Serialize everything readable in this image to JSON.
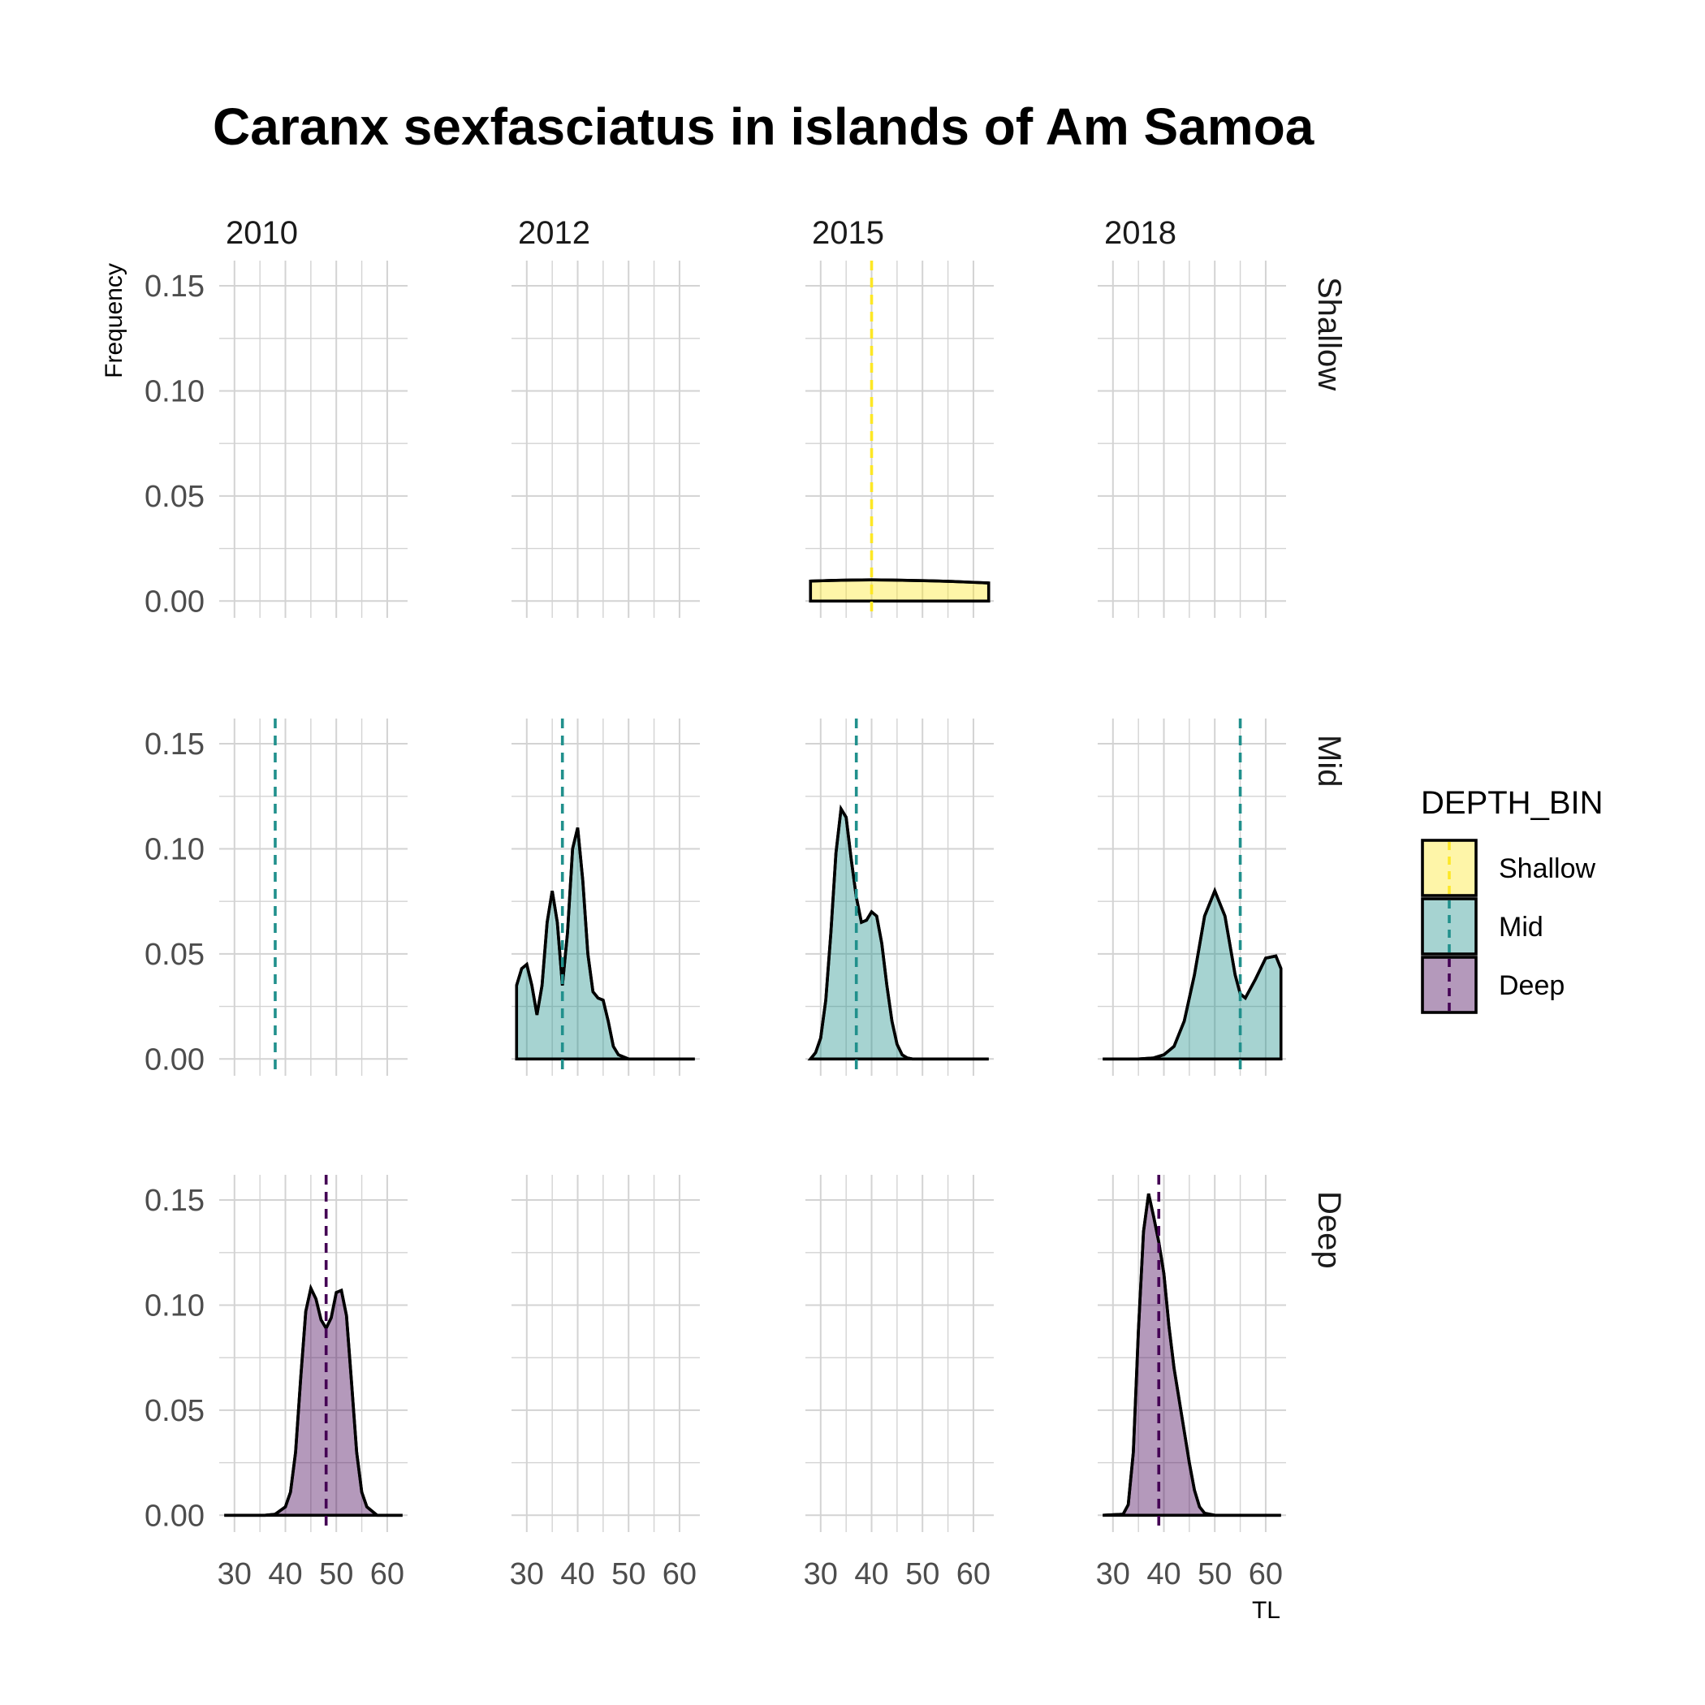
{
  "chart_data": {
    "type": "area",
    "title": "Caranx sexfasciatus in islands of Am Samoa",
    "xlabel": "TL",
    "ylabel": "Frequency",
    "xlim": [
      27,
      64
    ],
    "ylim": [
      -0.008,
      0.162
    ],
    "x_ticks": [
      30,
      40,
      50,
      60
    ],
    "x_tick_labels": [
      "30",
      "40",
      "50",
      "60"
    ],
    "y_ticks": [
      0,
      0.05,
      0.1,
      0.15
    ],
    "y_tick_labels": [
      "0.00",
      "0.05",
      "0.10",
      "0.15"
    ],
    "grid": true,
    "columns": [
      "2010",
      "2012",
      "2015",
      "2018"
    ],
    "rows": [
      "Shallow",
      "Mid",
      "Deep"
    ],
    "legend": {
      "title": "DEPTH_BIN",
      "position": "right",
      "items": [
        {
          "label": "Shallow",
          "color": "#FDE725"
        },
        {
          "label": "Mid",
          "color": "#21908C"
        },
        {
          "label": "Deep",
          "color": "#440154"
        }
      ]
    },
    "series": [
      {
        "year": "2015",
        "depth": "Shallow",
        "mean": 40,
        "x": [
          28,
          32,
          36,
          40,
          44,
          48,
          52,
          56,
          60,
          63
        ],
        "y": [
          0.0095,
          0.0098,
          0.01,
          0.0101,
          0.01,
          0.0098,
          0.0096,
          0.0093,
          0.0089,
          0.0086
        ]
      },
      {
        "year": "2010",
        "depth": "Mid",
        "mean": 38,
        "x": [],
        "y": []
      },
      {
        "year": "2012",
        "depth": "Mid",
        "mean": 37,
        "x": [
          28,
          29,
          30,
          31,
          32,
          33,
          34,
          35,
          36,
          37,
          38,
          39,
          40,
          41,
          42,
          43,
          44,
          45,
          46,
          47,
          48,
          50,
          55,
          60,
          63
        ],
        "y": [
          0.035,
          0.043,
          0.045,
          0.035,
          0.021,
          0.035,
          0.065,
          0.08,
          0.065,
          0.035,
          0.06,
          0.1,
          0.11,
          0.085,
          0.05,
          0.032,
          0.029,
          0.028,
          0.018,
          0.006,
          0.002,
          0,
          0,
          0,
          0
        ]
      },
      {
        "year": "2015",
        "depth": "Mid",
        "mean": 37,
        "x": [
          28,
          29,
          30,
          31,
          32,
          33,
          34,
          35,
          36,
          37,
          38,
          39,
          40,
          41,
          42,
          43,
          44,
          45,
          46,
          47,
          48,
          50,
          55,
          60,
          63
        ],
        "y": [
          0.0,
          0.003,
          0.01,
          0.028,
          0.06,
          0.098,
          0.119,
          0.115,
          0.095,
          0.077,
          0.065,
          0.066,
          0.07,
          0.068,
          0.055,
          0.035,
          0.018,
          0.007,
          0.002,
          0.0005,
          0,
          0,
          0,
          0,
          0
        ]
      },
      {
        "year": "2018",
        "depth": "Mid",
        "mean": 55,
        "x": [
          28,
          35,
          38,
          40,
          42,
          44,
          46,
          48,
          50,
          52,
          54,
          55,
          56,
          58,
          60,
          62,
          63
        ],
        "y": [
          0,
          0,
          0.0005,
          0.002,
          0.006,
          0.018,
          0.04,
          0.068,
          0.08,
          0.068,
          0.04,
          0.031,
          0.029,
          0.038,
          0.048,
          0.049,
          0.043
        ]
      },
      {
        "year": "2010",
        "depth": "Deep",
        "mean": 48,
        "x": [
          28,
          36,
          38,
          40,
          41,
          42,
          43,
          44,
          45,
          46,
          47,
          48,
          49,
          50,
          51,
          52,
          53,
          54,
          55,
          56,
          58,
          63
        ],
        "y": [
          0,
          0,
          0.0005,
          0.004,
          0.011,
          0.03,
          0.065,
          0.097,
          0.108,
          0.103,
          0.093,
          0.089,
          0.094,
          0.106,
          0.107,
          0.095,
          0.063,
          0.03,
          0.011,
          0.004,
          0,
          0
        ]
      },
      {
        "year": "2018",
        "depth": "Deep",
        "mean": 39,
        "x": [
          28,
          32,
          33,
          34,
          35,
          36,
          37,
          38,
          39,
          40,
          41,
          42,
          43,
          44,
          45,
          46,
          47,
          48,
          50,
          55,
          63
        ],
        "y": [
          0,
          0.0005,
          0.005,
          0.03,
          0.088,
          0.135,
          0.153,
          0.142,
          0.13,
          0.115,
          0.09,
          0.07,
          0.055,
          0.04,
          0.025,
          0.012,
          0.004,
          0.001,
          0,
          0,
          0
        ]
      }
    ]
  }
}
